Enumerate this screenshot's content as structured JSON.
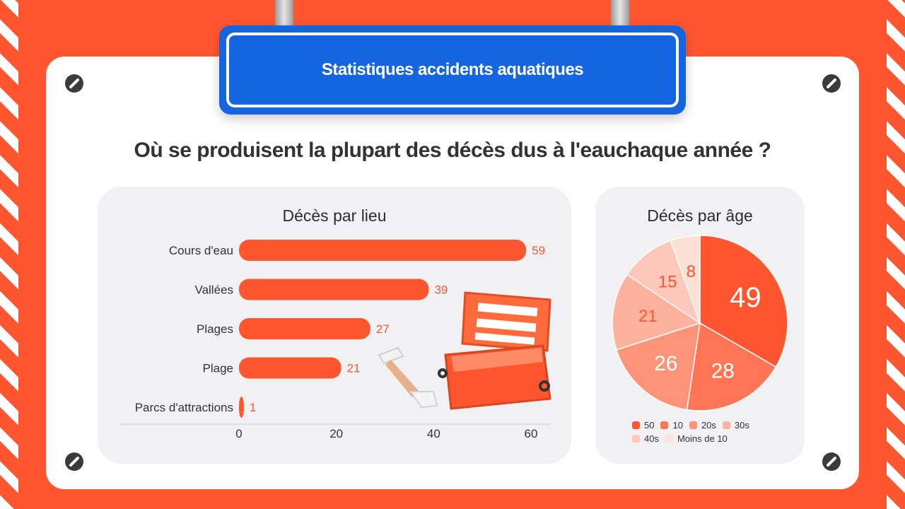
{
  "header": {
    "title": "Statistiques accidents aquatiques",
    "question": "Où se produisent la plupart des décès dus à l'eauchaque année ?"
  },
  "colors": {
    "background": "#ff5630",
    "title_box": "#1565e0",
    "bar": "#ff5630"
  },
  "chart_data": [
    {
      "type": "bar",
      "orientation": "horizontal",
      "title": "Décès par lieu",
      "categories": [
        "Cours d'eau",
        "Vallées",
        "Plages",
        "Plage",
        "Parcs d'attractions"
      ],
      "values": [
        59,
        39,
        27,
        21,
        1
      ],
      "xlim": [
        0,
        60
      ],
      "xticks": [
        0,
        20,
        40,
        60
      ],
      "grid": false
    },
    {
      "type": "pie",
      "title": "Décès par âge",
      "labels": [
        "50",
        "10",
        "20s",
        "30s",
        "40s",
        "Moins de 10"
      ],
      "values": [
        49,
        28,
        26,
        21,
        15,
        8
      ],
      "colors": [
        "#ff5630",
        "#ff7555",
        "#fd947a",
        "#fdb29e",
        "#fdc8b9",
        "#fde0d6"
      ],
      "legend_position": "bottom"
    }
  ]
}
